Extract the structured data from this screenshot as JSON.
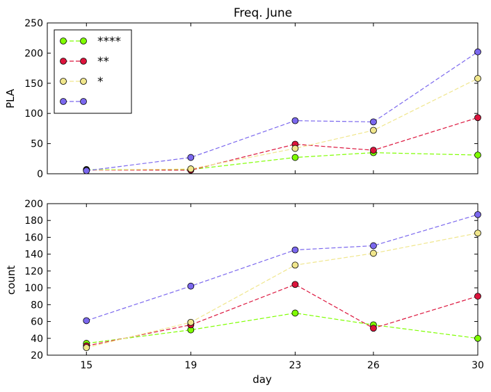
{
  "chart_data": {
    "title": "Freq. June",
    "x": [
      15,
      19,
      23,
      26,
      30
    ],
    "xlabel": "day",
    "xticks": [
      15,
      19,
      23,
      26,
      30
    ],
    "xlim": [
      13.5,
      30
    ],
    "marker_edge_color": "#000000",
    "subplots": [
      {
        "type": "line",
        "ylabel": "PLA",
        "ylim": [
          0,
          250
        ],
        "yticks": [
          0,
          50,
          100,
          150,
          200,
          250
        ],
        "legend": "upper-left",
        "series": [
          {
            "name": "****",
            "color": "#7fff00",
            "values": [
              7,
              7,
              27,
              35,
              31
            ]
          },
          {
            "name": "**",
            "color": "#dc143c",
            "values": [
              6,
              6,
              49,
              39,
              93
            ]
          },
          {
            "name": "*",
            "color": "#f0e68c",
            "values": [
              6,
              8,
              42,
              72,
              158
            ]
          },
          {
            "name": "",
            "color": "#7b68ee",
            "values": [
              5,
              27,
              88,
              86,
              202
            ]
          }
        ]
      },
      {
        "type": "line",
        "ylabel": "count",
        "ylim": [
          20,
          200
        ],
        "yticks": [
          20,
          40,
          60,
          80,
          100,
          120,
          140,
          160,
          180,
          200
        ],
        "series": [
          {
            "color": "#7fff00",
            "values": [
              34,
              50,
              70,
              56,
              40
            ]
          },
          {
            "color": "#dc143c",
            "values": [
              31,
              56,
              104,
              52,
              90
            ]
          },
          {
            "color": "#f0e68c",
            "values": [
              29,
              59,
              127,
              141,
              165
            ]
          },
          {
            "color": "#7b68ee",
            "values": [
              61,
              102,
              145,
              150,
              187
            ]
          }
        ]
      }
    ]
  }
}
